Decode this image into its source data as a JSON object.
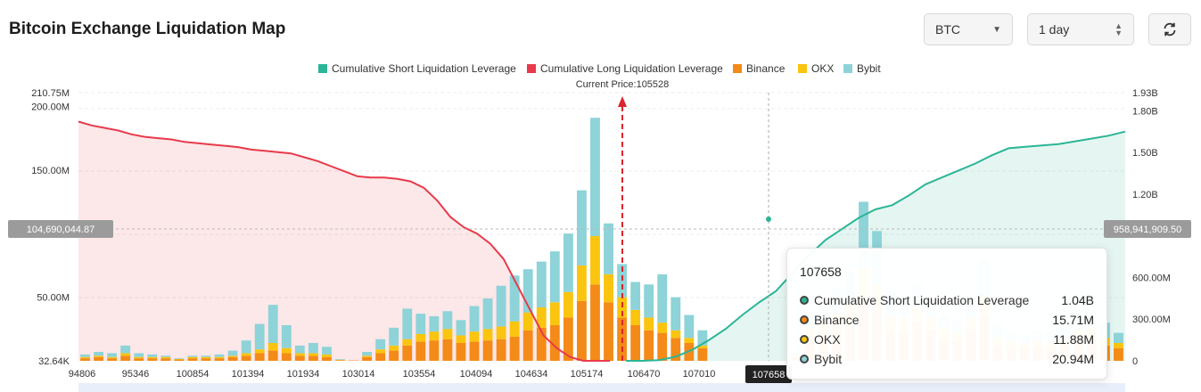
{
  "header": {
    "title": "Bitcoin Exchange Liquidation Map",
    "coin_select": "BTC",
    "range_select": "1 day"
  },
  "colors": {
    "short": "#2bb596",
    "long": "#e83a4a",
    "binance": "#f48a18",
    "okx": "#fbc40e",
    "bybit": "#8dd3d8",
    "current_price_line": "#d9252b"
  },
  "icons": {
    "dropdown": "caret-down-icon",
    "stepper": "up-down-icon",
    "refresh": "refresh-icon"
  },
  "chart_data": {
    "type": "bar",
    "title": "Bitcoin Exchange Liquidation Map",
    "current_price_label": "Current Price:105528",
    "current_price": 105528,
    "legend": [
      {
        "name": "Cumulative Short Liquidation Leverage",
        "color": "#2bb596"
      },
      {
        "name": "Cumulative Long Liquidation Leverage",
        "color": "#e83a4a"
      },
      {
        "name": "Binance",
        "color": "#f48a18"
      },
      {
        "name": "OKX",
        "color": "#fbc40e"
      },
      {
        "name": "Bybit",
        "color": "#8dd3d8"
      }
    ],
    "left_axis": {
      "ticks": [
        "210.75M",
        "200.00M",
        "150.00M",
        "50.00M",
        "32.64K"
      ],
      "ylim": [
        0,
        210.75
      ],
      "unit": "M"
    },
    "right_axis": {
      "ticks": [
        "1.93B",
        "1.80B",
        "1.50B",
        "1.20B",
        "600.00M",
        "300.00M",
        "0"
      ],
      "ylim": [
        0,
        1930
      ],
      "unit": "M"
    },
    "x_ticks": [
      "94806",
      "95346",
      "100854",
      "101394",
      "101934",
      "103014",
      "103554",
      "104094",
      "104634",
      "105174",
      "106470",
      "107010",
      "107658"
    ],
    "crosshair": {
      "x_label": "107658",
      "left_value": "104,690,044.87",
      "right_value": "958,941,909.50"
    },
    "stacked_series": {
      "binance": [
        2,
        3,
        2,
        4,
        2,
        2,
        2,
        1,
        2,
        2,
        2,
        3,
        4,
        6,
        8,
        6,
        4,
        4,
        3,
        0.5,
        0.3,
        3,
        6,
        8,
        12,
        15,
        16,
        17,
        14,
        15,
        16,
        17,
        19,
        24,
        26,
        28,
        34,
        47,
        60,
        46,
        34,
        28,
        24,
        22,
        18,
        14,
        10,
        0,
        0,
        0,
        0,
        0,
        0,
        3,
        18,
        20,
        22,
        26,
        45,
        40,
        23,
        24,
        30,
        24,
        18,
        15,
        24,
        34,
        12,
        10,
        9,
        10,
        9,
        12,
        16,
        17,
        12,
        10
      ],
      "okx": [
        1,
        1,
        1,
        2,
        1,
        1,
        1,
        0.5,
        1,
        1,
        1,
        1,
        2,
        3,
        6,
        4,
        2,
        2,
        2,
        0.3,
        0,
        1,
        3,
        4,
        5,
        6,
        7,
        8,
        6,
        8,
        9,
        10,
        12,
        14,
        16,
        18,
        20,
        28,
        38,
        22,
        16,
        12,
        10,
        8,
        6,
        4,
        2,
        0,
        0,
        0,
        0,
        0,
        0,
        1,
        8,
        12,
        15,
        20,
        28,
        20,
        12,
        10,
        12,
        10,
        8,
        6,
        10,
        16,
        6,
        5,
        4,
        5,
        5,
        6,
        8,
        8,
        6,
        4
      ],
      "bybit": [
        2,
        3,
        3,
        6,
        3,
        2,
        1,
        0.5,
        1,
        1,
        2,
        4,
        10,
        20,
        30,
        18,
        6,
        8,
        6,
        0.5,
        0,
        3,
        8,
        14,
        24,
        16,
        12,
        14,
        12,
        20,
        24,
        32,
        36,
        34,
        36,
        40,
        46,
        59,
        93,
        40,
        26,
        22,
        26,
        38,
        26,
        18,
        12,
        0,
        0,
        0,
        0,
        0,
        0,
        2,
        10,
        14,
        20,
        24,
        52,
        42,
        20,
        18,
        18,
        14,
        10,
        10,
        16,
        30,
        10,
        8,
        8,
        9,
        10,
        12,
        16,
        14,
        12,
        8
      ]
    },
    "long_cumulative_path_M": [
      188,
      185,
      183,
      181,
      178,
      176,
      175,
      174,
      172,
      171,
      170,
      169,
      168,
      166,
      165,
      164,
      163,
      160,
      157,
      153,
      149,
      145,
      144,
      144,
      143,
      141,
      136,
      126,
      113,
      105,
      100,
      92,
      80,
      60,
      40,
      20,
      10,
      3,
      0,
      0,
      0
    ],
    "short_cumulative_path_M": [
      0,
      0,
      5,
      30,
      80,
      150,
      230,
      330,
      420,
      500,
      630,
      760,
      870,
      950,
      1030,
      1090,
      1120,
      1190,
      1270,
      1320,
      1370,
      1420,
      1480,
      1530,
      1540,
      1550,
      1560,
      1580,
      1600,
      1620,
      1650
    ]
  },
  "tooltip": {
    "title": "107658",
    "rows": [
      {
        "label": "Cumulative Short Liquidation Leverage",
        "value": "1.04B",
        "color": "#2bb596"
      },
      {
        "label": "Binance",
        "value": "15.71M",
        "color": "#f48a18"
      },
      {
        "label": "OKX",
        "value": "11.88M",
        "color": "#fbc40e"
      },
      {
        "label": "Bybit",
        "value": "20.94M",
        "color": "#8dd3d8"
      }
    ]
  }
}
